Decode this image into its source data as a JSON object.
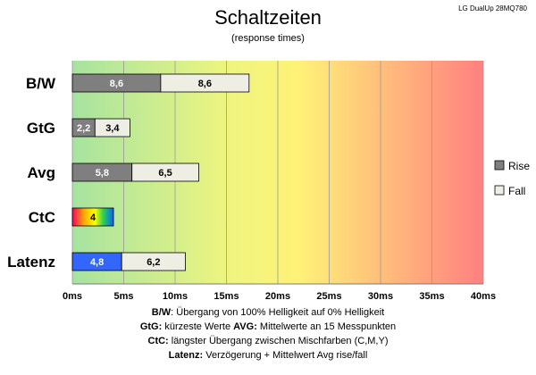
{
  "chart_data": {
    "type": "bar",
    "orientation": "horizontal",
    "stacked": true,
    "title": "Schaltzeiten",
    "subtitle": "(response times)",
    "corner_label": "LG DualUp 28MQ780",
    "categories": [
      "B/W",
      "GtG",
      "Avg",
      "CtC",
      "Latenz"
    ],
    "series": [
      {
        "name": "Rise",
        "color": "#7f7f7f",
        "values": [
          8.6,
          2.2,
          5.8,
          null,
          4.8
        ],
        "labels": [
          "8,6",
          "2,2",
          "5,8",
          "",
          "4,8"
        ]
      },
      {
        "name": "Fall",
        "color": "#eeeee4",
        "values": [
          8.6,
          3.4,
          6.5,
          null,
          6.2
        ],
        "labels": [
          "8,6",
          "3,4",
          "6,5",
          "",
          "6,2"
        ]
      }
    ],
    "special_bars": [
      {
        "category": "CtC",
        "value": 4,
        "label": "4",
        "fill": "rainbow"
      }
    ],
    "latenz_rise_color": "#3366ff",
    "x_range": [
      0,
      40
    ],
    "x_ticks": [
      "0ms",
      "5ms",
      "10ms",
      "15ms",
      "20ms",
      "25ms",
      "30ms",
      "35ms",
      "40ms"
    ],
    "grid": true,
    "background_gradient": [
      "#a6e3a1",
      "#f5f576",
      "#ff8080"
    ],
    "legend_position": "right",
    "notes": [
      [
        {
          "b": "B/W",
          "t": ":  Übergang von 100% Helligkeit auf 0% Helligkeit"
        }
      ],
      [
        {
          "b": "GtG:",
          "t": " kürzeste Werte        "
        },
        {
          "b": "AVG:",
          "t": " Mittelwerte an 15 Messpunkten"
        }
      ],
      [
        {
          "b": "CtC:",
          "t": " längster Übergang zwischen Mischfarben (C,M,Y)"
        }
      ],
      [
        {
          "b": "Latenz:",
          "t": " Verzögerung + Mittelwert Avg rise/fall"
        }
      ]
    ]
  }
}
